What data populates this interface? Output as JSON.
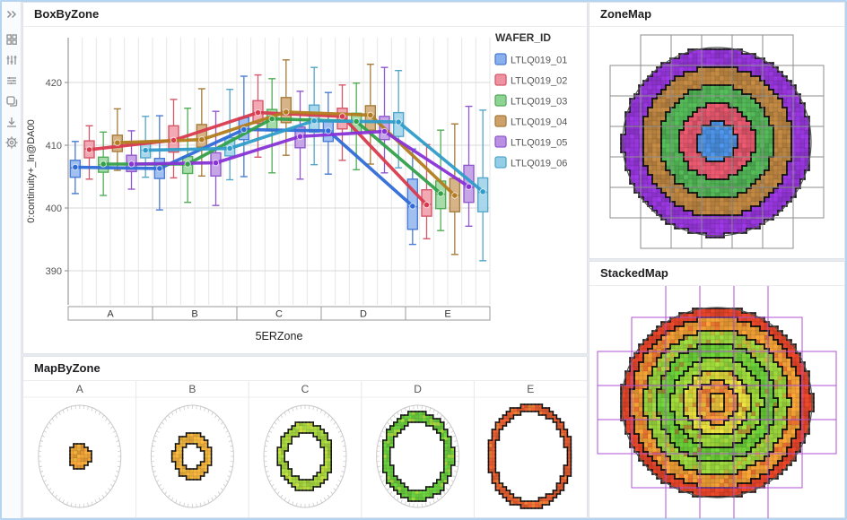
{
  "window": {
    "frame_color": "#b5d4f2",
    "background": "#e7eaee"
  },
  "sidebar": {
    "icons": [
      {
        "name": "collapse-panel-icon"
      },
      {
        "name": "dashboard-grid-icon"
      },
      {
        "name": "sliders-icon"
      },
      {
        "name": "filter-list-icon"
      },
      {
        "name": "copy-icon"
      },
      {
        "name": "download-icon"
      },
      {
        "name": "settings-gear-icon"
      }
    ]
  },
  "panels": {
    "box_by_zone": {
      "title": "BoxByZone"
    },
    "map_by_zone": {
      "title": "MapByZone"
    },
    "zone_map": {
      "title": "ZoneMap"
    },
    "stacked_map": {
      "title": "StackedMap"
    }
  },
  "chart_data": [
    {
      "id": "box_by_zone",
      "type": "box",
      "title": "BoxByZone",
      "xlabel": "5ERZone",
      "ylabel": "0:continuity+_ln@DA00",
      "categories": [
        "A",
        "B",
        "C",
        "D",
        "E"
      ],
      "yticks": [
        390,
        400,
        410,
        420
      ],
      "ylim": [
        384.5,
        427
      ],
      "grid": true,
      "legend_position": "right",
      "legend_title": "WAFER_ID",
      "series": [
        {
          "name": "LTLQ019_01",
          "line_color": "#2f6bd7",
          "box_fill": "#89b0ec",
          "box_border": "#4a7bd4",
          "means": [
            406.5,
            406.3,
            412.5,
            412.3,
            400.3
          ],
          "boxes": [
            [
              402.3,
              404.9,
              406.4,
              407.6,
              410.6
            ],
            [
              399.7,
              404.7,
              406.2,
              407.9,
              414.7
            ],
            [
              405.0,
              410.9,
              412.5,
              414.4,
              421.0
            ],
            [
              405.4,
              410.6,
              412.3,
              413.9,
              418.4
            ],
            [
              394.2,
              396.6,
              400.2,
              404.6,
              409.4
            ]
          ]
        },
        {
          "name": "LTLQ019_02",
          "line_color": "#d93a4e",
          "box_fill": "#ef93a0",
          "box_border": "#d4586a",
          "means": [
            409.3,
            410.8,
            415.2,
            414.6,
            400.5
          ],
          "boxes": [
            [
              404.6,
              408.0,
              409.4,
              410.7,
              413.1
            ],
            [
              404.8,
              408.9,
              410.6,
              413.1,
              417.3
            ],
            [
              408.1,
              413.5,
              415.2,
              417.1,
              421.2
            ],
            [
              407.6,
              412.6,
              414.5,
              415.9,
              419.6
            ],
            [
              395.1,
              398.7,
              400.6,
              402.9,
              410.1
            ]
          ]
        },
        {
          "name": "LTLQ019_03",
          "line_color": "#33a04a",
          "box_fill": "#8fd394",
          "box_border": "#52ad57",
          "means": [
            407.0,
            407.0,
            414.2,
            413.8,
            402.3
          ],
          "boxes": [
            [
              402.0,
              405.7,
              406.9,
              408.1,
              412.1
            ],
            [
              400.9,
              405.5,
              406.9,
              408.2,
              415.9
            ],
            [
              405.6,
              412.3,
              414.1,
              415.7,
              420.6
            ],
            [
              406.1,
              412.0,
              413.9,
              415.1,
              419.9
            ],
            [
              396.4,
              399.9,
              402.2,
              404.3,
              412.4
            ]
          ]
        },
        {
          "name": "LTLQ019_04",
          "line_color": "#b27c1e",
          "box_fill": "#cda169",
          "box_border": "#a67c3b",
          "means": [
            410.4,
            410.9,
            415.3,
            414.8,
            402.0
          ],
          "boxes": [
            [
              406.0,
              409.0,
              410.4,
              411.6,
              415.8
            ],
            [
              405.1,
              409.7,
              411.0,
              413.3,
              419.0
            ],
            [
              408.4,
              413.6,
              415.4,
              417.6,
              423.6
            ],
            [
              407.0,
              412.4,
              414.7,
              416.3,
              422.9
            ],
            [
              392.6,
              399.4,
              402.0,
              404.7,
              413.4
            ]
          ]
        },
        {
          "name": "LTLQ019_05",
          "line_color": "#8833d6",
          "box_fill": "#b990e2",
          "box_border": "#9059ce",
          "means": [
            407.0,
            407.2,
            411.4,
            412.2,
            403.4
          ],
          "boxes": [
            [
              403.0,
              405.8,
              407.0,
              408.4,
              412.3
            ],
            [
              400.4,
              405.1,
              407.1,
              408.8,
              415.4
            ],
            [
              404.6,
              409.6,
              411.4,
              412.9,
              418.6
            ],
            [
              405.6,
              410.9,
              412.3,
              414.6,
              422.4
            ],
            [
              397.1,
              400.9,
              403.3,
              406.8,
              416.2
            ]
          ]
        },
        {
          "name": "LTLQ019_06",
          "line_color": "#2f9cc9",
          "box_fill": "#93cde6",
          "box_border": "#55a7c9",
          "means": [
            409.2,
            409.5,
            413.9,
            413.7,
            402.6
          ],
          "boxes": [
            [
              404.9,
              408.0,
              409.2,
              410.6,
              414.6
            ],
            [
              404.5,
              408.3,
              409.6,
              411.2,
              418.9
            ],
            [
              406.9,
              412.1,
              414.0,
              416.4,
              422.4
            ],
            [
              406.4,
              411.4,
              413.6,
              415.2,
              421.9
            ],
            [
              391.6,
              399.4,
              402.5,
              404.8,
              415.6
            ]
          ]
        }
      ]
    },
    {
      "id": "zone_map",
      "type": "heatmap",
      "subtype": "wafer-zone-map",
      "zones": [
        {
          "label": "A",
          "outer_r": 0.21,
          "color": "#4a8fe0"
        },
        {
          "label": "B",
          "outer_r": 0.4,
          "color": "#e0556a"
        },
        {
          "label": "C",
          "outer_r": 0.6,
          "color": "#50b254"
        },
        {
          "label": "D",
          "outer_r": 0.8,
          "color": "#ba8340"
        },
        {
          "label": "E",
          "outer_r": 1.0,
          "color": "#9435d8"
        }
      ],
      "reticle_color": "#8d8d8d",
      "outline_color": "#555555"
    },
    {
      "id": "stacked_map",
      "type": "heatmap",
      "subtype": "wafer-stacked-heat",
      "band_boundaries": [
        0.09,
        0.22,
        0.35,
        0.48,
        0.62,
        0.76,
        0.9,
        1.0
      ],
      "band_colors": [
        "#f0c83e",
        "#ec9538",
        "#e0d83c",
        "#9cd53a",
        "#68ca36",
        "#98d23c",
        "#ec9c34",
        "#e24428"
      ],
      "reticle_color": "#b052d2",
      "outline_color": "#555555"
    },
    {
      "id": "map_by_zone",
      "type": "heatmap",
      "subtype": "wafer-zone-detail",
      "band_boundaries": [
        0.26,
        0.46,
        0.66,
        0.87,
        1.04
      ],
      "maps": [
        {
          "label": "A",
          "color": "#f0a238",
          "accent": "#f2c33e"
        },
        {
          "label": "B",
          "color": "#f0b13a",
          "accent": "#f2cf3e"
        },
        {
          "label": "C",
          "color": "#a4d43c",
          "accent": "#f0e03e"
        },
        {
          "label": "D",
          "color": "#66cb3a",
          "accent": "#e8e03e"
        },
        {
          "label": "E",
          "color": "#e75c2e",
          "accent": "#f0a236"
        }
      ]
    }
  ]
}
